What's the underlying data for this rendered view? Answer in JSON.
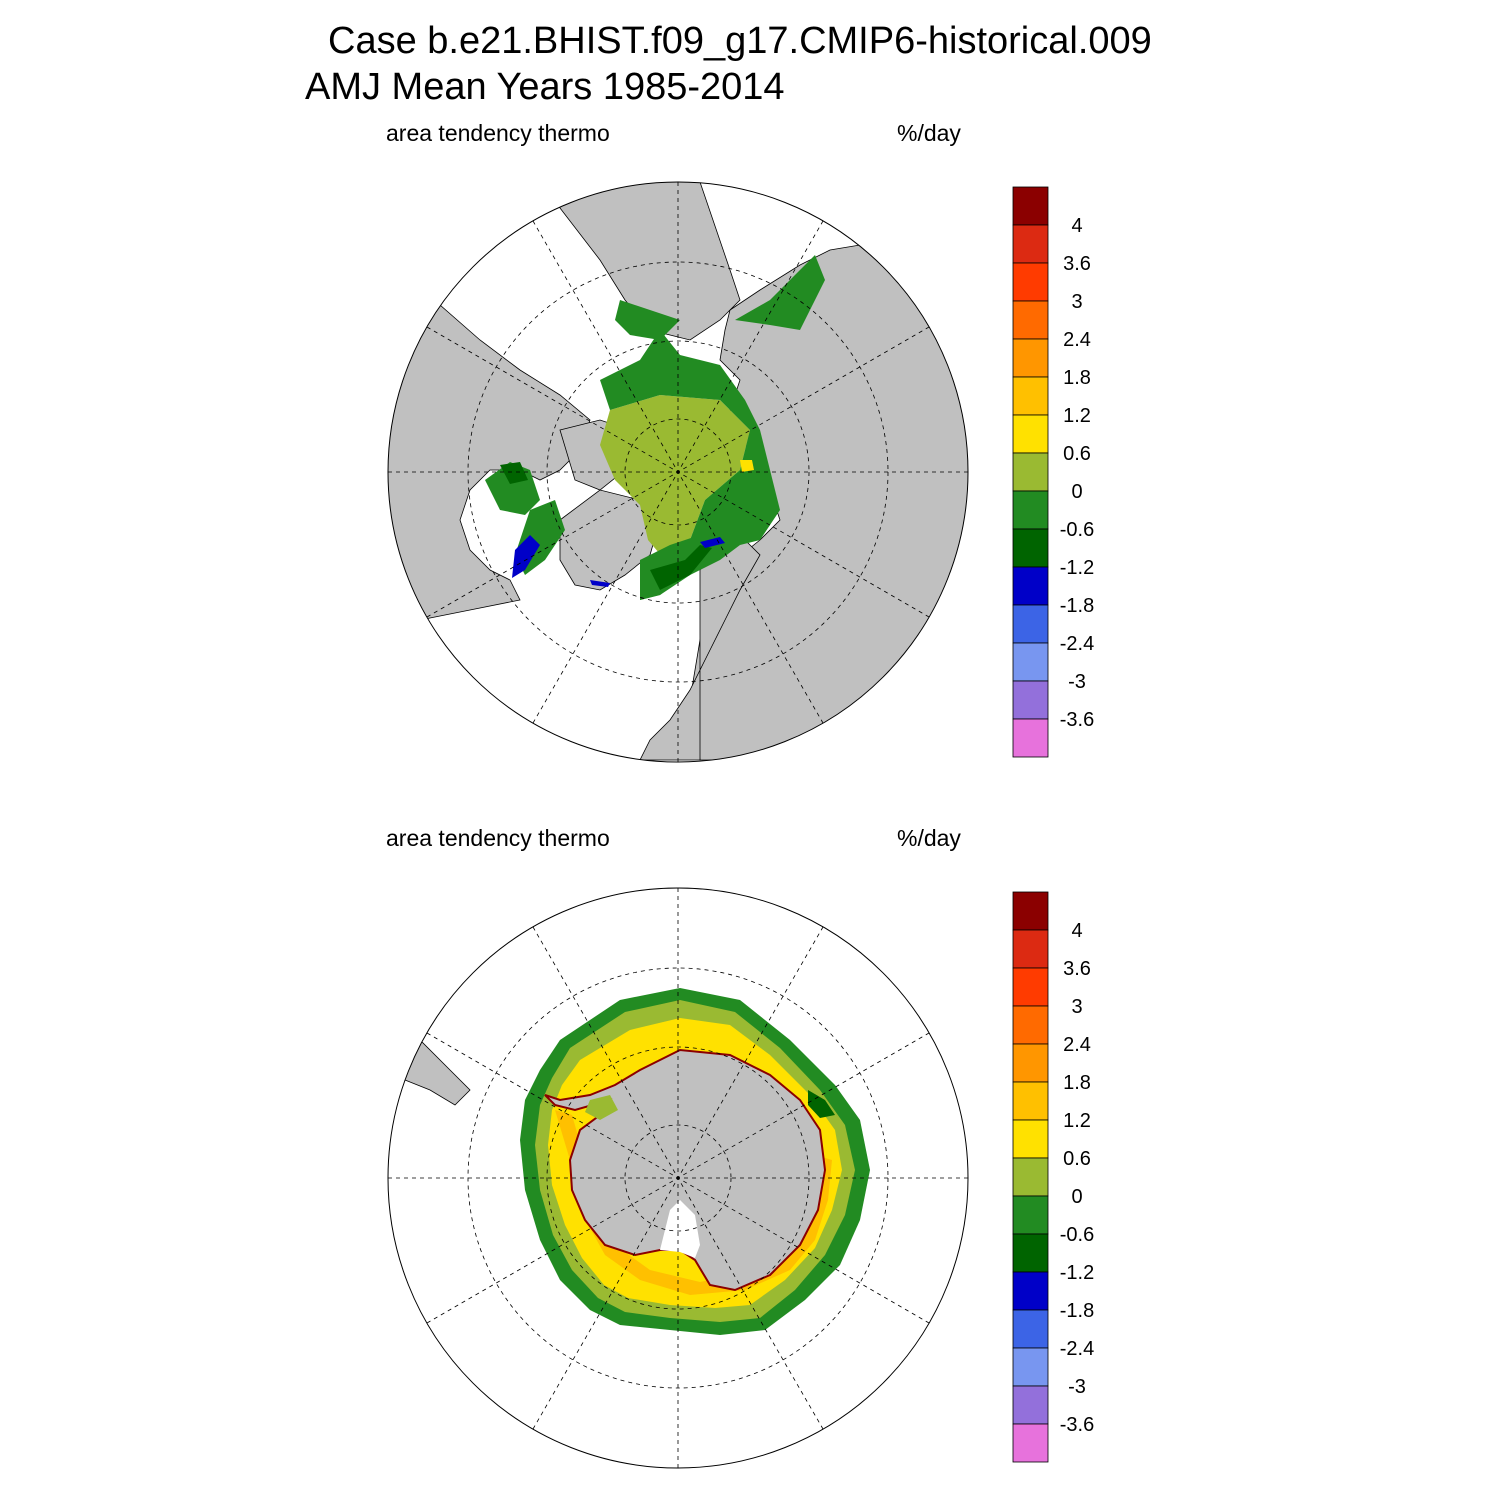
{
  "title": {
    "line1": "Case b.e21.BHIST.f09_g17.CMIP6-historical.009",
    "line2": "AMJ Mean   Years 1985-2014"
  },
  "colorbar": {
    "colors": [
      "#8b0000",
      "#dc2a12",
      "#ff3b00",
      "#ff6a00",
      "#ff9600",
      "#ffc000",
      "#ffe100",
      "#9aba32",
      "#228b22",
      "#006400",
      "#0000c8",
      "#3c64e6",
      "#7896f0",
      "#9370db",
      "#e772dc"
    ],
    "tick_labels": [
      "4",
      "3.6",
      "3",
      "2.4",
      "1.8",
      "1.2",
      "0.6",
      "0",
      "-0.6",
      "-1.2",
      "-1.8",
      "-2.4",
      "-3",
      "-3.6"
    ]
  },
  "panels": [
    {
      "id": "nh",
      "variable_label": "area tendency thermo",
      "units_label": "%/day",
      "hemisphere": "north",
      "land_color": "#c0c0c0",
      "ocean_color": "#ffffff"
    },
    {
      "id": "sh",
      "variable_label": "area tendency thermo",
      "units_label": "%/day",
      "hemisphere": "south",
      "land_color": "#c0c0c0",
      "ocean_color": "#ffffff"
    }
  ]
}
